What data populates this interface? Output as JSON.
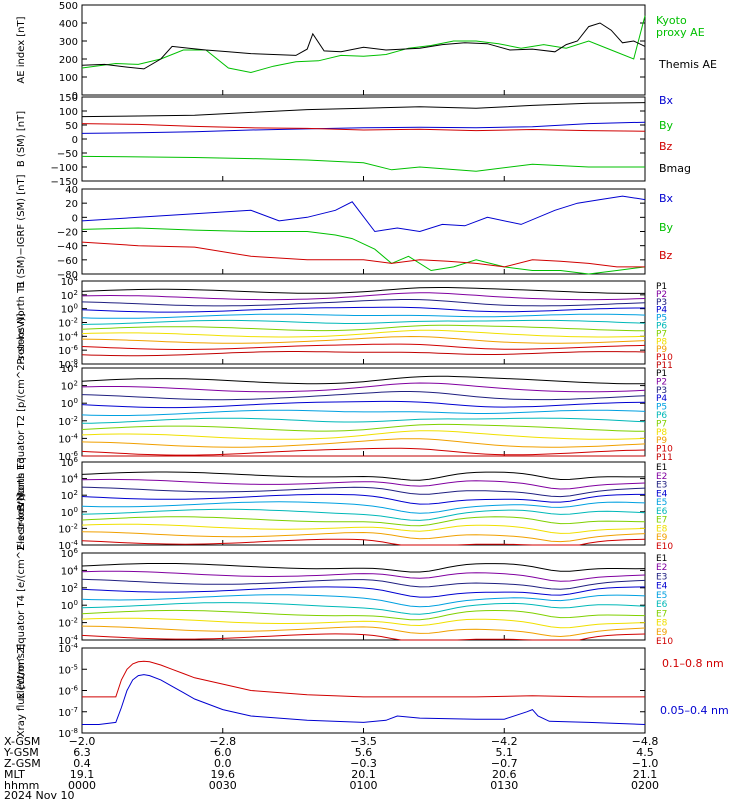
{
  "colors": {
    "black": "#000000",
    "green": "#00c000",
    "red": "#d00000",
    "blue": "#0000d0",
    "purple": "#8000a0",
    "navy": "#202080",
    "cyan": "#00a0e0",
    "teal": "#00b8b8",
    "lime": "#80d000",
    "yellow": "#f0e000",
    "orange": "#f0a000",
    "darkred": "#c00000"
  },
  "chart_data": [
    {
      "type": "line",
      "ylabel": "AE index [nT]",
      "yticks": [
        "500",
        "400",
        "300",
        "200",
        "100",
        "0"
      ],
      "ylim": [
        0,
        500
      ],
      "series": [
        {
          "name": "Kyoto proxy AE",
          "color": "#00c000",
          "x": [
            0,
            6,
            10,
            14,
            18,
            22,
            26,
            30,
            34,
            38,
            42,
            46,
            50,
            54,
            58,
            62,
            66,
            70,
            74,
            78,
            82,
            86,
            90,
            94,
            98,
            100
          ],
          "values": [
            150,
            175,
            170,
            200,
            250,
            250,
            150,
            125,
            160,
            185,
            190,
            220,
            215,
            225,
            260,
            275,
            300,
            300,
            285,
            260,
            280,
            260,
            300,
            250,
            200,
            440
          ]
        },
        {
          "name": "Themis AE",
          "color": "#000000",
          "x": [
            0,
            4,
            8,
            11,
            14,
            16,
            19,
            22,
            26,
            30,
            34,
            38,
            40,
            41,
            43,
            46,
            50,
            54,
            57,
            60,
            64,
            68,
            72,
            76,
            80,
            84,
            86,
            88,
            90,
            92,
            94,
            96,
            98,
            100
          ],
          "values": [
            165,
            170,
            155,
            145,
            200,
            270,
            260,
            250,
            240,
            230,
            225,
            220,
            255,
            340,
            245,
            240,
            265,
            250,
            255,
            260,
            280,
            290,
            285,
            250,
            255,
            240,
            280,
            300,
            380,
            400,
            360,
            290,
            300,
            270
          ]
        }
      ],
      "legend": [
        "Kyoto proxy AE",
        "Themis AE"
      ]
    },
    {
      "type": "line",
      "ylabel": "B (SM) [nT]",
      "yticks": [
        "150",
        "100",
        "50",
        "0",
        "−50",
        "−100",
        "−150"
      ],
      "ylim": [
        -150,
        150
      ],
      "series": [
        {
          "name": "Bx",
          "color": "#0000d0",
          "x": [
            0,
            10,
            20,
            30,
            40,
            50,
            60,
            70,
            80,
            90,
            100
          ],
          "values": [
            20,
            22,
            26,
            32,
            36,
            40,
            42,
            40,
            44,
            55,
            60
          ]
        },
        {
          "name": "By",
          "color": "#00c000",
          "x": [
            0,
            10,
            20,
            30,
            40,
            50,
            55,
            60,
            70,
            80,
            90,
            100
          ],
          "values": [
            -62,
            -64,
            -66,
            -70,
            -75,
            -85,
            -110,
            -100,
            -115,
            -90,
            -100,
            -100
          ]
        },
        {
          "name": "Bz",
          "color": "#d00000",
          "x": [
            0,
            10,
            20,
            30,
            40,
            50,
            60,
            70,
            80,
            90,
            100
          ],
          "values": [
            55,
            52,
            45,
            40,
            38,
            32,
            35,
            30,
            34,
            30,
            28
          ]
        },
        {
          "name": "Bmag",
          "color": "#000000",
          "x": [
            0,
            10,
            20,
            30,
            40,
            50,
            60,
            70,
            80,
            90,
            100
          ],
          "values": [
            80,
            82,
            85,
            95,
            105,
            110,
            115,
            110,
            120,
            128,
            130
          ]
        }
      ],
      "legend": [
        "Bx",
        "By",
        "Bz",
        "Bmag"
      ]
    },
    {
      "type": "line",
      "ylabel": "B (SM)−IGRF (SM) [nT]",
      "yticks": [
        "40",
        "20",
        "0",
        "−20",
        "−40",
        "−60",
        "−80"
      ],
      "ylim": [
        -80,
        40
      ],
      "series": [
        {
          "name": "Bx",
          "color": "#0000d0",
          "x": [
            0,
            10,
            20,
            30,
            35,
            40,
            45,
            48,
            52,
            56,
            60,
            64,
            68,
            72,
            78,
            84,
            88,
            92,
            96,
            100
          ],
          "values": [
            -5,
            0,
            5,
            10,
            -5,
            0,
            10,
            22,
            -20,
            -15,
            -20,
            -10,
            -12,
            0,
            -10,
            10,
            20,
            25,
            30,
            25
          ]
        },
        {
          "name": "By",
          "color": "#00c000",
          "x": [
            0,
            10,
            20,
            30,
            40,
            45,
            48,
            52,
            55,
            58,
            62,
            66,
            70,
            75,
            80,
            85,
            90,
            95,
            100
          ],
          "values": [
            -17,
            -15,
            -18,
            -20,
            -20,
            -25,
            -30,
            -45,
            -65,
            -55,
            -75,
            -70,
            -60,
            -70,
            -75,
            -75,
            -80,
            -75,
            -70
          ]
        },
        {
          "name": "Bz",
          "color": "#d00000",
          "x": [
            0,
            10,
            20,
            30,
            40,
            50,
            55,
            60,
            65,
            70,
            75,
            80,
            85,
            90,
            95,
            100
          ],
          "values": [
            -35,
            -40,
            -42,
            -55,
            -60,
            -60,
            -65,
            -60,
            -62,
            -65,
            -70,
            -60,
            -62,
            -65,
            -70,
            -70
          ]
        }
      ],
      "legend": [
        "Bx",
        "By",
        "Bz"
      ]
    },
    {
      "type": "line",
      "ylog": true,
      "ylabel": "Protons North T1",
      "yticks": [
        "10^4",
        "10^2",
        "10^0",
        "10^-2",
        "10^-4",
        "10^-6",
        "10^-8"
      ],
      "ylim": [
        -8,
        4
      ],
      "channels": [
        "P1",
        "P2",
        "P3",
        "P4",
        "P5",
        "P6",
        "P7",
        "P8",
        "P9",
        "P10",
        "P11"
      ]
    },
    {
      "type": "line",
      "ylog": true,
      "ylabel": "Protons Equator T2 [p/(cm^2-s-sr-keV)]",
      "yticks": [
        "10^4",
        "10^2",
        "10^0",
        "10^-2",
        "10^-4",
        "10^-6"
      ],
      "ylim": [
        -6,
        4
      ],
      "channels": [
        "P1",
        "P2",
        "P3",
        "P4",
        "P5",
        "P6",
        "P7",
        "P8",
        "P9",
        "P10",
        "P11"
      ]
    },
    {
      "type": "line",
      "ylog": true,
      "ylabel": "Electrons North T3",
      "yticks": [
        "10^6",
        "10^4",
        "10^2",
        "10^0",
        "10^-2",
        "10^-4"
      ],
      "ylim": [
        -4,
        6
      ],
      "channels": [
        "E1",
        "E2",
        "E3",
        "E4",
        "E5",
        "E6",
        "E7",
        "E8",
        "E9",
        "E10"
      ]
    },
    {
      "type": "line",
      "ylog": true,
      "ylabel": "Electrons Equator T4 [e/(cm^2-s-sr-keV)]",
      "yticks": [
        "10^6",
        "10^4",
        "10^2",
        "10^0",
        "10^-2",
        "10^-4"
      ],
      "ylim": [
        -4,
        6
      ],
      "channels": [
        "E1",
        "E2",
        "E3",
        "E4",
        "E5",
        "E6",
        "E7",
        "E8",
        "E9",
        "E10"
      ]
    },
    {
      "type": "line",
      "ylog": true,
      "ylabel": "Xray flux [W/m^2]",
      "yticks": [
        "10^-4",
        "10^-5",
        "10^-6",
        "10^-7",
        "10^-8"
      ],
      "ylim": [
        -8,
        -4
      ],
      "series": [
        {
          "name": "0.1–0.8 nm",
          "color": "#d00000",
          "x": [
            0,
            3,
            6,
            7,
            8,
            9,
            10,
            11,
            12,
            14,
            16,
            18,
            20,
            25,
            30,
            40,
            50,
            60,
            70,
            80,
            90,
            100
          ],
          "values": [
            -6.3,
            -6.3,
            -6.3,
            -5.5,
            -5.0,
            -4.75,
            -4.65,
            -4.62,
            -4.65,
            -4.8,
            -5.0,
            -5.2,
            -5.4,
            -5.7,
            -6.0,
            -6.2,
            -6.3,
            -6.3,
            -6.3,
            -6.25,
            -6.3,
            -6.3
          ]
        },
        {
          "name": "0.05–0.4 nm",
          "color": "#0000d0",
          "x": [
            0,
            3,
            6,
            7,
            8,
            9,
            10,
            11,
            12,
            14,
            16,
            18,
            20,
            25,
            30,
            40,
            50,
            54,
            56,
            60,
            70,
            75,
            79,
            80,
            81,
            83,
            90,
            100
          ],
          "values": [
            -7.6,
            -7.6,
            -7.5,
            -6.8,
            -6.0,
            -5.5,
            -5.3,
            -5.25,
            -5.3,
            -5.5,
            -5.8,
            -6.1,
            -6.4,
            -6.9,
            -7.2,
            -7.4,
            -7.5,
            -7.4,
            -7.2,
            -7.3,
            -7.35,
            -7.35,
            -7.0,
            -6.9,
            -7.2,
            -7.45,
            -7.5,
            -7.6
          ]
        }
      ],
      "legend": [
        "0.1–0.8 nm",
        "0.05–0.4 nm"
      ]
    }
  ],
  "footer": {
    "row_labels": [
      "X-GSM",
      "Y-GSM",
      "Z-GSM",
      "MLT",
      "hhmm",
      "2024 Nov 10"
    ],
    "columns": [
      {
        "x": "−2.0",
        "y": "6.3",
        "z": "0.4",
        "mlt": "19.1",
        "hhmm": "0000"
      },
      {
        "x": "−2.8",
        "y": "6.0",
        "z": "0.0",
        "mlt": "19.6",
        "hhmm": "0030"
      },
      {
        "x": "−3.5",
        "y": "5.6",
        "z": "−0.3",
        "mlt": "20.1",
        "hhmm": "0100"
      },
      {
        "x": "−4.2",
        "y": "5.1",
        "z": "−0.7",
        "mlt": "20.6",
        "hhmm": "0130"
      },
      {
        "x": "−4.8",
        "y": "4.5",
        "z": "−1.0",
        "mlt": "21.1",
        "hhmm": "0200"
      }
    ]
  }
}
